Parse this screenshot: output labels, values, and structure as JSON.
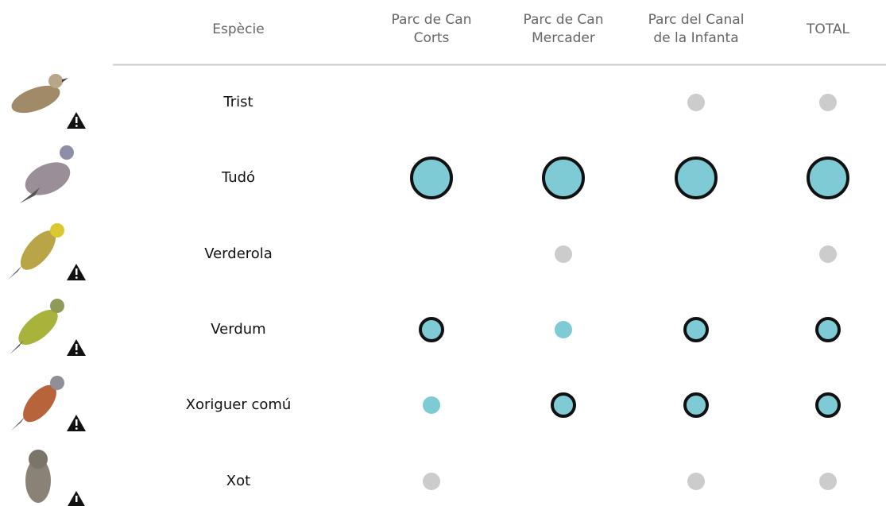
{
  "table": {
    "header": [
      [
        "Espècie"
      ],
      [
        "Parc de Can",
        "Corts"
      ],
      [
        "Parc de Can",
        "Mercader"
      ],
      [
        "Parc del Canal",
        "de la Infanta"
      ],
      [
        "TOTAL"
      ]
    ],
    "rows": [
      "Trist",
      "Tudó",
      "Verderola",
      "Verdum",
      "Xoriguer comú",
      "Xot"
    ]
  }
}
